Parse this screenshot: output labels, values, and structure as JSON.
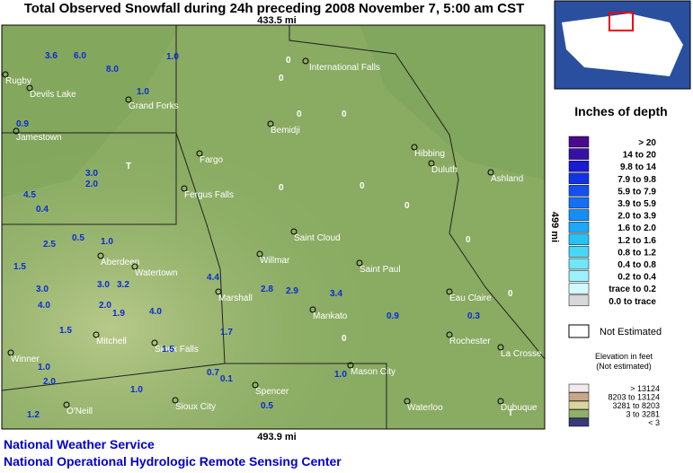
{
  "header": {
    "title": "Total Observed Snowfall during 24h preceding 2008 November 7, 5:00 am CST"
  },
  "map": {
    "top_distance": "433.5 mi",
    "bottom_distance": "493.9 mi",
    "side_distance": "499 mi",
    "cities": [
      "Rugby",
      "Devils Lake",
      "Grand Forks",
      "International Falls",
      "Bemidji",
      "Hibbing",
      "Duluth",
      "Ashland",
      "Jamestown",
      "Fargo",
      "Fergus Falls",
      "Saint Cloud",
      "Aberdeen",
      "Watertown",
      "Willmar",
      "Saint Paul",
      "Marshall",
      "Eau Claire",
      "Mankato",
      "Mitchell",
      "Sioux Falls",
      "Winner",
      "Rochester",
      "La Crosse",
      "Mason City",
      "Spencer",
      "O'Neill",
      "Sioux City",
      "Waterloo",
      "Dubuque"
    ],
    "stations": [
      "3.6",
      "6.0",
      "8.0",
      "1.0",
      "0",
      "0",
      "1.0",
      "0.9",
      "0",
      "0",
      "3.0",
      "2.0",
      "4.5",
      "0.4",
      "0",
      "0",
      "T",
      "0",
      "0.5",
      "1.0",
      "2.5",
      "1.5",
      "3.0",
      "4.0",
      "3.0",
      "3.2",
      "4.4",
      "2.8",
      "2.9",
      "3.4",
      "2.0",
      "1.9",
      "4.0",
      "1.5",
      "1.0",
      "2.0",
      "1.7",
      "0.1",
      "0.9",
      "0.5",
      "1.2",
      "1.0",
      "T",
      "0",
      "0",
      "0.3",
      "0",
      "1.0",
      "1.5",
      "0.7"
    ]
  },
  "legend": {
    "title": "Inches of depth",
    "entries": [
      ">   20",
      "14 to   20",
      "9.8 to   14",
      "7.9 to  9.8",
      "5.9 to  7.9",
      "3.9 to  5.9",
      "2.0 to  3.9",
      "1.6 to  2.0",
      "1.2 to  1.6",
      "0.8 to  1.2",
      "0.4 to  0.8",
      "0.2 to  0.4",
      "trace to  0.2",
      "0.0 to trace"
    ],
    "not_estimated": "Not Estimated",
    "elevation_title": "Elevation in feet",
    "elevation_note": "(Not estimated)",
    "elevation_entries": [
      ">  13124",
      "8203 to 13124",
      "3281 to   8203",
      "3 to   3281",
      "<      3"
    ]
  },
  "footer": {
    "line1": "National Weather Service",
    "line2": "National Operational Hydrologic Remote Sensing Center"
  }
}
